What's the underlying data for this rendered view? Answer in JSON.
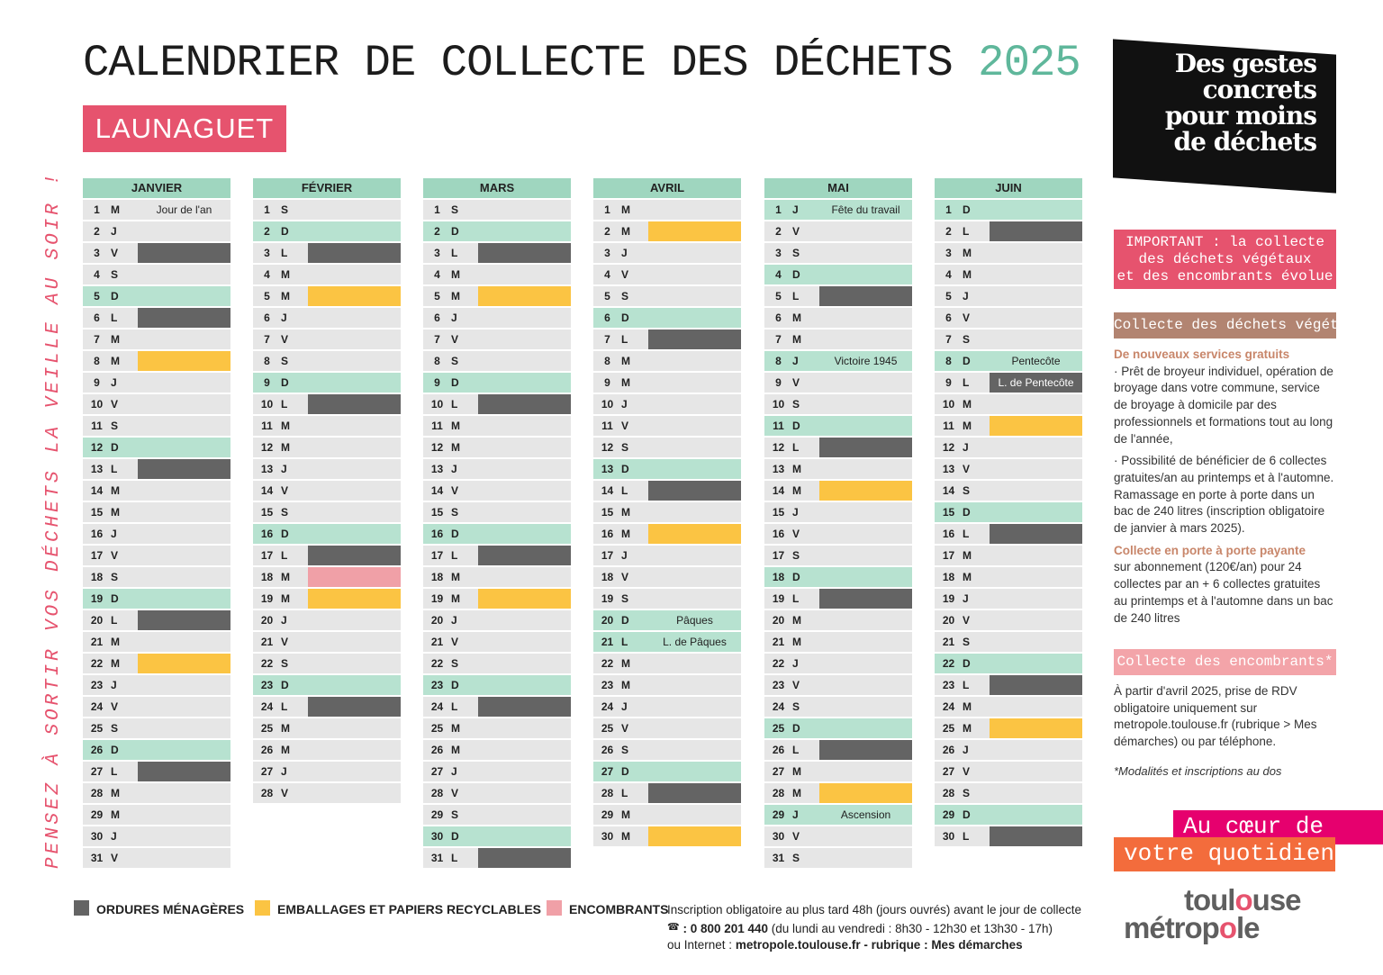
{
  "title": {
    "main": "CALENDRIER DE COLLECTE DES DÉCHETS",
    "year": "2025"
  },
  "commune": "LAUNAGUET",
  "logo": [
    "Des gestes",
    "concrets",
    "pour moins",
    "de déchets"
  ],
  "vertical_note": "PENSEZ À SORTIR VOS DÉCHETS LA VEILLE AU SOIR !",
  "colors": {
    "ordures": "#646464",
    "emballages": "#fbc443",
    "encombrants": "#f0a0a7",
    "weekend": "#b7e2d0",
    "accent": "#e6536e"
  },
  "months": [
    {
      "name": "JANVIER",
      "days": [
        {
          "n": "1",
          "w": "M",
          "label": "Jour de l'an"
        },
        {
          "n": "2",
          "w": "J"
        },
        {
          "n": "3",
          "w": "V",
          "col": "om"
        },
        {
          "n": "4",
          "w": "S"
        },
        {
          "n": "5",
          "w": "D"
        },
        {
          "n": "6",
          "w": "L",
          "col": "om"
        },
        {
          "n": "7",
          "w": "M"
        },
        {
          "n": "8",
          "w": "M",
          "col": "emb"
        },
        {
          "n": "9",
          "w": "J"
        },
        {
          "n": "10",
          "w": "V"
        },
        {
          "n": "11",
          "w": "S"
        },
        {
          "n": "12",
          "w": "D"
        },
        {
          "n": "13",
          "w": "L",
          "col": "om"
        },
        {
          "n": "14",
          "w": "M"
        },
        {
          "n": "15",
          "w": "M"
        },
        {
          "n": "16",
          "w": "J"
        },
        {
          "n": "17",
          "w": "V"
        },
        {
          "n": "18",
          "w": "S"
        },
        {
          "n": "19",
          "w": "D"
        },
        {
          "n": "20",
          "w": "L",
          "col": "om"
        },
        {
          "n": "21",
          "w": "M"
        },
        {
          "n": "22",
          "w": "M",
          "col": "emb"
        },
        {
          "n": "23",
          "w": "J"
        },
        {
          "n": "24",
          "w": "V"
        },
        {
          "n": "25",
          "w": "S"
        },
        {
          "n": "26",
          "w": "D"
        },
        {
          "n": "27",
          "w": "L",
          "col": "om"
        },
        {
          "n": "28",
          "w": "M"
        },
        {
          "n": "29",
          "w": "M"
        },
        {
          "n": "30",
          "w": "J"
        },
        {
          "n": "31",
          "w": "V"
        }
      ]
    },
    {
      "name": "FÉVRIER",
      "days": [
        {
          "n": "1",
          "w": "S"
        },
        {
          "n": "2",
          "w": "D"
        },
        {
          "n": "3",
          "w": "L",
          "col": "om"
        },
        {
          "n": "4",
          "w": "M"
        },
        {
          "n": "5",
          "w": "M",
          "col": "emb"
        },
        {
          "n": "6",
          "w": "J"
        },
        {
          "n": "7",
          "w": "V"
        },
        {
          "n": "8",
          "w": "S"
        },
        {
          "n": "9",
          "w": "D"
        },
        {
          "n": "10",
          "w": "L",
          "col": "om"
        },
        {
          "n": "11",
          "w": "M"
        },
        {
          "n": "12",
          "w": "M"
        },
        {
          "n": "13",
          "w": "J"
        },
        {
          "n": "14",
          "w": "V"
        },
        {
          "n": "15",
          "w": "S"
        },
        {
          "n": "16",
          "w": "D"
        },
        {
          "n": "17",
          "w": "L",
          "col": "om"
        },
        {
          "n": "18",
          "w": "M",
          "col": "enc"
        },
        {
          "n": "19",
          "w": "M",
          "col": "emb"
        },
        {
          "n": "20",
          "w": "J"
        },
        {
          "n": "21",
          "w": "V"
        },
        {
          "n": "22",
          "w": "S"
        },
        {
          "n": "23",
          "w": "D"
        },
        {
          "n": "24",
          "w": "L",
          "col": "om"
        },
        {
          "n": "25",
          "w": "M"
        },
        {
          "n": "26",
          "w": "M"
        },
        {
          "n": "27",
          "w": "J"
        },
        {
          "n": "28",
          "w": "V"
        }
      ]
    },
    {
      "name": "MARS",
      "days": [
        {
          "n": "1",
          "w": "S"
        },
        {
          "n": "2",
          "w": "D"
        },
        {
          "n": "3",
          "w": "L",
          "col": "om"
        },
        {
          "n": "4",
          "w": "M"
        },
        {
          "n": "5",
          "w": "M",
          "col": "emb"
        },
        {
          "n": "6",
          "w": "J"
        },
        {
          "n": "7",
          "w": "V"
        },
        {
          "n": "8",
          "w": "S"
        },
        {
          "n": "9",
          "w": "D"
        },
        {
          "n": "10",
          "w": "L",
          "col": "om"
        },
        {
          "n": "11",
          "w": "M"
        },
        {
          "n": "12",
          "w": "M"
        },
        {
          "n": "13",
          "w": "J"
        },
        {
          "n": "14",
          "w": "V"
        },
        {
          "n": "15",
          "w": "S"
        },
        {
          "n": "16",
          "w": "D"
        },
        {
          "n": "17",
          "w": "L",
          "col": "om"
        },
        {
          "n": "18",
          "w": "M"
        },
        {
          "n": "19",
          "w": "M",
          "col": "emb"
        },
        {
          "n": "20",
          "w": "J"
        },
        {
          "n": "21",
          "w": "V"
        },
        {
          "n": "22",
          "w": "S"
        },
        {
          "n": "23",
          "w": "D"
        },
        {
          "n": "24",
          "w": "L",
          "col": "om"
        },
        {
          "n": "25",
          "w": "M"
        },
        {
          "n": "26",
          "w": "M"
        },
        {
          "n": "27",
          "w": "J"
        },
        {
          "n": "28",
          "w": "V"
        },
        {
          "n": "29",
          "w": "S"
        },
        {
          "n": "30",
          "w": "D"
        },
        {
          "n": "31",
          "w": "L",
          "col": "om"
        }
      ]
    },
    {
      "name": "AVRIL",
      "days": [
        {
          "n": "1",
          "w": "M"
        },
        {
          "n": "2",
          "w": "M",
          "col": "emb"
        },
        {
          "n": "3",
          "w": "J"
        },
        {
          "n": "4",
          "w": "V"
        },
        {
          "n": "5",
          "w": "S"
        },
        {
          "n": "6",
          "w": "D"
        },
        {
          "n": "7",
          "w": "L",
          "col": "om"
        },
        {
          "n": "8",
          "w": "M"
        },
        {
          "n": "9",
          "w": "M"
        },
        {
          "n": "10",
          "w": "J"
        },
        {
          "n": "11",
          "w": "V"
        },
        {
          "n": "12",
          "w": "S"
        },
        {
          "n": "13",
          "w": "D"
        },
        {
          "n": "14",
          "w": "L",
          "col": "om"
        },
        {
          "n": "15",
          "w": "M"
        },
        {
          "n": "16",
          "w": "M",
          "col": "emb"
        },
        {
          "n": "17",
          "w": "J"
        },
        {
          "n": "18",
          "w": "V"
        },
        {
          "n": "19",
          "w": "S"
        },
        {
          "n": "20",
          "w": "D",
          "label": "Pâques"
        },
        {
          "n": "21",
          "w": "L",
          "label": "L. de Pâques",
          "hol": true
        },
        {
          "n": "22",
          "w": "M"
        },
        {
          "n": "23",
          "w": "M"
        },
        {
          "n": "24",
          "w": "J"
        },
        {
          "n": "25",
          "w": "V"
        },
        {
          "n": "26",
          "w": "S"
        },
        {
          "n": "27",
          "w": "D"
        },
        {
          "n": "28",
          "w": "L",
          "col": "om"
        },
        {
          "n": "29",
          "w": "M"
        },
        {
          "n": "30",
          "w": "M",
          "col": "emb"
        }
      ]
    },
    {
      "name": "MAI",
      "days": [
        {
          "n": "1",
          "w": "J",
          "label": "Fête du travail",
          "hol": true
        },
        {
          "n": "2",
          "w": "V"
        },
        {
          "n": "3",
          "w": "S"
        },
        {
          "n": "4",
          "w": "D"
        },
        {
          "n": "5",
          "w": "L",
          "col": "om"
        },
        {
          "n": "6",
          "w": "M"
        },
        {
          "n": "7",
          "w": "M"
        },
        {
          "n": "8",
          "w": "J",
          "label": "Victoire 1945",
          "hol": true
        },
        {
          "n": "9",
          "w": "V"
        },
        {
          "n": "10",
          "w": "S"
        },
        {
          "n": "11",
          "w": "D"
        },
        {
          "n": "12",
          "w": "L",
          "col": "om"
        },
        {
          "n": "13",
          "w": "M"
        },
        {
          "n": "14",
          "w": "M",
          "col": "emb"
        },
        {
          "n": "15",
          "w": "J"
        },
        {
          "n": "16",
          "w": "V"
        },
        {
          "n": "17",
          "w": "S"
        },
        {
          "n": "18",
          "w": "D"
        },
        {
          "n": "19",
          "w": "L",
          "col": "om"
        },
        {
          "n": "20",
          "w": "M"
        },
        {
          "n": "21",
          "w": "M"
        },
        {
          "n": "22",
          "w": "J"
        },
        {
          "n": "23",
          "w": "V"
        },
        {
          "n": "24",
          "w": "S"
        },
        {
          "n": "25",
          "w": "D"
        },
        {
          "n": "26",
          "w": "L",
          "col": "om"
        },
        {
          "n": "27",
          "w": "M"
        },
        {
          "n": "28",
          "w": "M",
          "col": "emb"
        },
        {
          "n": "29",
          "w": "J",
          "label": "Ascension",
          "hol": true
        },
        {
          "n": "30",
          "w": "V"
        },
        {
          "n": "31",
          "w": "S"
        }
      ]
    },
    {
      "name": "JUIN",
      "days": [
        {
          "n": "1",
          "w": "D"
        },
        {
          "n": "2",
          "w": "L",
          "col": "om"
        },
        {
          "n": "3",
          "w": "M"
        },
        {
          "n": "4",
          "w": "M"
        },
        {
          "n": "5",
          "w": "J"
        },
        {
          "n": "6",
          "w": "V"
        },
        {
          "n": "7",
          "w": "S"
        },
        {
          "n": "8",
          "w": "D",
          "label": "Pentecôte"
        },
        {
          "n": "9",
          "w": "L",
          "label": "L. de Pentecôte",
          "col": "om"
        },
        {
          "n": "10",
          "w": "M"
        },
        {
          "n": "11",
          "w": "M",
          "col": "emb"
        },
        {
          "n": "12",
          "w": "J"
        },
        {
          "n": "13",
          "w": "V"
        },
        {
          "n": "14",
          "w": "S"
        },
        {
          "n": "15",
          "w": "D"
        },
        {
          "n": "16",
          "w": "L",
          "col": "om"
        },
        {
          "n": "17",
          "w": "M"
        },
        {
          "n": "18",
          "w": "M"
        },
        {
          "n": "19",
          "w": "J"
        },
        {
          "n": "20",
          "w": "V"
        },
        {
          "n": "21",
          "w": "S"
        },
        {
          "n": "22",
          "w": "D"
        },
        {
          "n": "23",
          "w": "L",
          "col": "om"
        },
        {
          "n": "24",
          "w": "M"
        },
        {
          "n": "25",
          "w": "M",
          "col": "emb"
        },
        {
          "n": "26",
          "w": "J"
        },
        {
          "n": "27",
          "w": "V"
        },
        {
          "n": "28",
          "w": "S"
        },
        {
          "n": "29",
          "w": "D"
        },
        {
          "n": "30",
          "w": "L",
          "col": "om"
        }
      ]
    }
  ],
  "legend": {
    "ordures": "ORDURES MÉNAGÈRES",
    "emballages": "EMBALLAGES ET PAPIERS RECYCLABLES",
    "encombrants": "ENCOMBRANTS"
  },
  "info": {
    "line1": "Inscription obligatoire au plus tard 48h (jours ouvrés) avant le jour de collecte",
    "phone_icon": "☎",
    "phone": " : 0 800 201 440",
    "hours": " (du lundi au vendredi : 8h30 - 12h30 et 13h30 - 17h)",
    "internet_prefix": "ou Internet : ",
    "internet": "metropole.toulouse.fr - rubrique : Mes démarches"
  },
  "sidebar": {
    "important": [
      "IMPORTANT : la collecte",
      "des déchets végétaux",
      "et des encombrants évolue"
    ],
    "vegetaux_title": "Collecte des déchets végétaux*",
    "vegetaux_h1": "De nouveaux services gratuits",
    "vegetaux_p1": "· Prêt de broyeur individuel, opération de broyage dans votre commune, service de broyage à domicile par des professionnels et formations tout au long de l'année,",
    "vegetaux_p2": "· Possibilité de bénéficier de 6 collectes gratuites/an au printemps et à l'automne. Ramassage en porte à porte dans un bac de 240 litres (inscription obligatoire de janvier à mars 2025).",
    "vegetaux_h2": "Collecte en porte à porte payante",
    "vegetaux_p3": "sur abonnement (120€/an) pour 24 collectes par an + 6 collectes gratuites au printemps et à l'automne dans un bac de 240 litres",
    "encombrants_title": "Collecte des encombrants*",
    "encombrants_p": "À partir d'avril 2025, prise de RDV obligatoire uniquement sur metropole.toulouse.fr (rubrique > Mes démarches) ou par téléphone.",
    "note": "*Modalités et inscriptions au dos",
    "tagline1": "Au cœur de",
    "tagline2": "votre quotidien",
    "brand1_a": "toul",
    "brand1_o": "o",
    "brand1_b": "use",
    "brand2_a": "métrop",
    "brand2_o": "o",
    "brand2_b": "le"
  }
}
